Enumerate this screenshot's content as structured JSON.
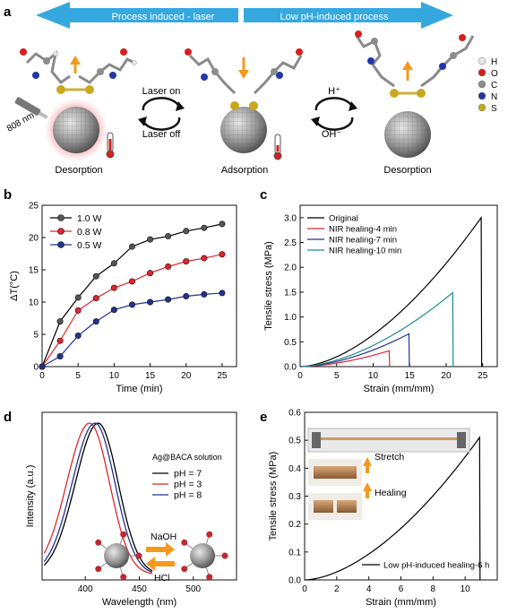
{
  "panel_labels": {
    "a": "a",
    "b": "b",
    "c": "c",
    "d": "d",
    "e": "e"
  },
  "schematic": {
    "left_arrow_label": "Process induced - laser",
    "right_arrow_label": "Low pH-induced process",
    "laser_on": "Laser on",
    "laser_off": "Laser off",
    "h_plus": "H⁺",
    "oh_minus": "OH⁻",
    "wavelength": "808 nm",
    "states": [
      "Desorption",
      "Adsorption",
      "Desorption"
    ],
    "legend": [
      {
        "symbol": "H",
        "color": "#e6e6e6"
      },
      {
        "symbol": "O",
        "color": "#d42020"
      },
      {
        "symbol": "C",
        "color": "#8c8c8c"
      },
      {
        "symbol": "N",
        "color": "#2236a8"
      },
      {
        "symbol": "S",
        "color": "#c8a820"
      }
    ],
    "colors": {
      "arrow": "#35a8e0",
      "bond": "#c9b23a",
      "sphere": "#9a9a9a",
      "glow": "#f0a0a8",
      "up_arrow": "#f39a1e"
    }
  },
  "chart_data": [
    {
      "id": "b",
      "type": "line",
      "xlabel": "Time (min)",
      "ylabel": "ΔT(°C)",
      "xlim": [
        0,
        27
      ],
      "ylim": [
        0,
        25
      ],
      "xticks": [
        0,
        5,
        10,
        15,
        20,
        25
      ],
      "yticks": [
        0,
        5,
        10,
        15,
        20,
        25
      ],
      "legend_position": "top-left",
      "grid": false,
      "series": [
        {
          "name": "1.0 W",
          "color": "#000000",
          "fill": "#555555",
          "x": [
            0,
            2.5,
            5,
            7.5,
            10,
            12.5,
            15,
            17.5,
            20,
            22.5,
            25
          ],
          "y": [
            0,
            7.0,
            10.7,
            14.0,
            16.0,
            18.6,
            19.7,
            20.2,
            21.0,
            21.5,
            22.1
          ]
        },
        {
          "name": "0.8 W",
          "color": "#e0252b",
          "fill": "#e0252b",
          "x": [
            0,
            2.5,
            5,
            7.5,
            10,
            12.5,
            15,
            17.5,
            20,
            22.5,
            25
          ],
          "y": [
            0,
            4.0,
            8.7,
            10.6,
            12.2,
            13.2,
            14.5,
            15.5,
            16.3,
            16.8,
            17.4
          ]
        },
        {
          "name": "0.5 W",
          "color": "#22328f",
          "fill": "#22328f",
          "x": [
            0,
            2.5,
            5,
            7.5,
            10,
            12.5,
            15,
            17.5,
            20,
            22.5,
            25
          ],
          "y": [
            0,
            1.6,
            4.8,
            7.0,
            8.8,
            9.6,
            10.0,
            10.4,
            10.9,
            11.2,
            11.4
          ]
        }
      ]
    },
    {
      "id": "c",
      "type": "line",
      "xlabel": "Strain (mm/mm)",
      "ylabel": "Tensile stress (MPa)",
      "xlim": [
        0,
        27
      ],
      "ylim": [
        0,
        3.25
      ],
      "xticks": [
        0,
        5,
        10,
        15,
        20,
        25
      ],
      "yticks": [
        0.0,
        0.5,
        1.0,
        1.5,
        2.0,
        2.5,
        3.0
      ],
      "legend_position": "top-left",
      "series": [
        {
          "name": "Original",
          "color": "#000000",
          "x_end": 24.8,
          "y_end": 3.0
        },
        {
          "name": "NIR healing-4 min",
          "color": "#e0252b",
          "x_end": 12.2,
          "y_end": 0.32
        },
        {
          "name": "NIR healing-7 min",
          "color": "#22328f",
          "x_end": 14.9,
          "y_end": 0.66
        },
        {
          "name": "NIR healing-10 min",
          "color": "#1f8a8a",
          "x_end": 20.9,
          "y_end": 1.49
        }
      ]
    },
    {
      "id": "d",
      "type": "line",
      "xlabel": "Wavelength (nm)",
      "ylabel": "Intensity (a.u.)",
      "xlim": [
        360,
        540
      ],
      "xticks": [
        400,
        450,
        500
      ],
      "legend_title": "Ag@BACA solution",
      "legend_position": "top-right",
      "series": [
        {
          "name": "pH = 7",
          "color": "#000000",
          "peak": 412
        },
        {
          "name": "pH = 3",
          "color": "#e0252b",
          "peak": 404
        },
        {
          "name": "pH = 8",
          "color": "#22328f",
          "peak": 409
        }
      ],
      "annotations": {
        "naoh": "NaOH",
        "hcl": "HCl"
      }
    },
    {
      "id": "e",
      "type": "line",
      "xlabel": "Strain (mm/mm)",
      "ylabel": "Tensile stress (MPa)",
      "xlim": [
        0,
        12
      ],
      "ylim": [
        0,
        0.6
      ],
      "xticks": [
        0,
        2,
        4,
        6,
        8,
        10
      ],
      "yticks": [
        0.0,
        0.1,
        0.2,
        0.3,
        0.4,
        0.5,
        0.6
      ],
      "legend_position": "bottom-right",
      "series": [
        {
          "name": "Low pH-induced healing-6 h",
          "color": "#000000",
          "x_end": 10.9,
          "y_end": 0.51
        }
      ],
      "annotations": {
        "stretch": "Stretch",
        "healing": "Healing"
      }
    }
  ]
}
